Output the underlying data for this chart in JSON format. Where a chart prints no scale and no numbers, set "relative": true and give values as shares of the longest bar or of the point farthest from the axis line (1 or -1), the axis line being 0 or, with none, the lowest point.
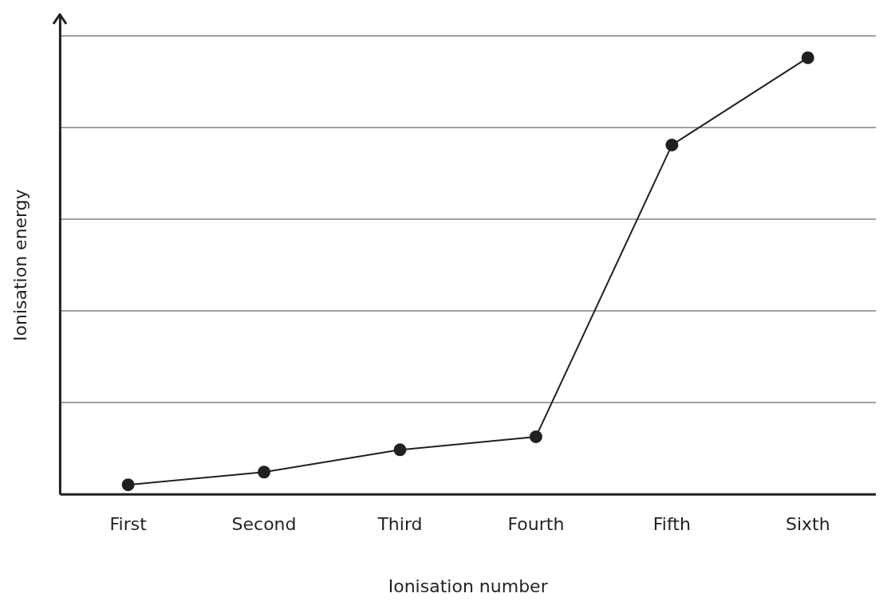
{
  "chart_data": {
    "type": "line",
    "xlabel": "Ionisation number",
    "ylabel": "Ionisation energy",
    "categories": [
      "First",
      "Second",
      "Third",
      "Fourth",
      "Fifth",
      "Sixth"
    ],
    "series": [
      {
        "color": "#231f20",
        "values": [
          0.022,
          0.051,
          0.102,
          0.132,
          0.8,
          1
        ]
      }
    ],
    "relative": true,
    "grid": "y",
    "marker": "circle",
    "line_style": "solid",
    "legend": false
  }
}
